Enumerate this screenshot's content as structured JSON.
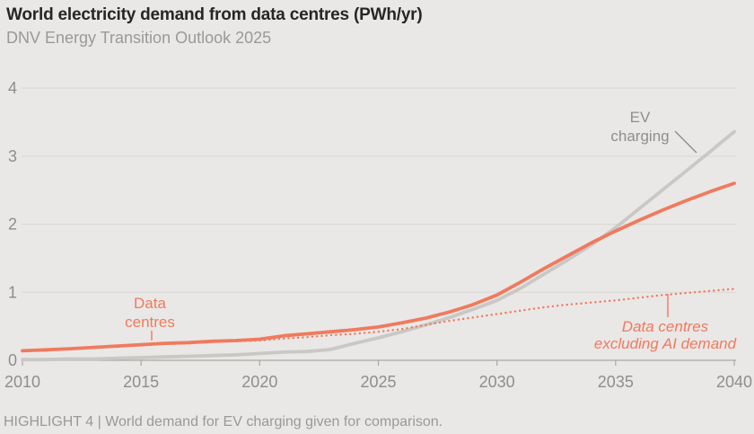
{
  "header": {
    "title": "World electricity demand from data centres (PWh/yr)",
    "subtitle": "DNV Energy Transition Outlook 2025"
  },
  "footer": {
    "caption": "HIGHLIGHT 4 | World demand for EV charging given for comparison."
  },
  "colors": {
    "background": "#e9e8e6",
    "accent_orange": "#f07a5e",
    "line_gray": "#c9c8c5",
    "gridline": "#d8d7d4",
    "axis": "#a8a7a4",
    "tick_text": "#8f8e8c",
    "title_text": "#262626",
    "muted_text": "#9a9998"
  },
  "chart_data": {
    "type": "line",
    "title": "World electricity demand from data centres (PWh/yr)",
    "subtitle": "DNV Energy Transition Outlook 2025",
    "xlabel": "",
    "ylabel": "PWh/yr",
    "xlim": [
      2010,
      2040
    ],
    "ylim": [
      0,
      4
    ],
    "x_ticks": [
      2010,
      2015,
      2020,
      2025,
      2030,
      2035,
      2040
    ],
    "y_ticks": [
      0,
      1,
      2,
      3,
      4
    ],
    "grid": "horizontal",
    "legend_position": "inline-labels",
    "series": [
      {
        "id": "ev-charging",
        "name": "EV charging",
        "style": "solid",
        "color": "#c9c8c5",
        "x": [
          2010,
          2011,
          2012,
          2013,
          2014,
          2015,
          2016,
          2017,
          2018,
          2019,
          2020,
          2021,
          2022,
          2023,
          2024,
          2025,
          2026,
          2027,
          2028,
          2029,
          2030,
          2031,
          2032,
          2033,
          2034,
          2035,
          2036,
          2037,
          2038,
          2039,
          2040
        ],
        "values": [
          0.01,
          0.01,
          0.02,
          0.02,
          0.03,
          0.04,
          0.05,
          0.06,
          0.07,
          0.08,
          0.1,
          0.12,
          0.13,
          0.16,
          0.25,
          0.33,
          0.42,
          0.52,
          0.63,
          0.75,
          0.88,
          1.06,
          1.27,
          1.48,
          1.7,
          1.95,
          2.23,
          2.51,
          2.79,
          3.07,
          3.36
        ]
      },
      {
        "id": "data-centres-excl-ai",
        "name": "Data centres excluding AI demand",
        "style": "dotted",
        "color": "#f07a5e",
        "x": [
          2010,
          2011,
          2012,
          2013,
          2014,
          2015,
          2016,
          2017,
          2018,
          2019,
          2020,
          2021,
          2022,
          2023,
          2024,
          2025,
          2026,
          2027,
          2028,
          2029,
          2030,
          2031,
          2032,
          2033,
          2034,
          2035,
          2036,
          2037,
          2038,
          2039,
          2040
        ],
        "values": [
          0.135,
          0.15,
          0.165,
          0.185,
          0.2,
          0.22,
          0.24,
          0.25,
          0.27,
          0.28,
          0.29,
          0.32,
          0.34,
          0.37,
          0.39,
          0.42,
          0.46,
          0.52,
          0.58,
          0.63,
          0.68,
          0.73,
          0.78,
          0.82,
          0.85,
          0.88,
          0.92,
          0.96,
          0.99,
          1.02,
          1.05
        ]
      },
      {
        "id": "data-centres",
        "name": "Data centres",
        "style": "solid",
        "color": "#f07a5e",
        "x": [
          2010,
          2011,
          2012,
          2013,
          2014,
          2015,
          2016,
          2017,
          2018,
          2019,
          2020,
          2021,
          2022,
          2023,
          2024,
          2025,
          2026,
          2027,
          2028,
          2029,
          2030,
          2031,
          2032,
          2033,
          2034,
          2035,
          2036,
          2037,
          2038,
          2039,
          2040
        ],
        "values": [
          0.14,
          0.155,
          0.17,
          0.19,
          0.21,
          0.23,
          0.25,
          0.26,
          0.28,
          0.29,
          0.31,
          0.36,
          0.39,
          0.42,
          0.45,
          0.49,
          0.55,
          0.62,
          0.71,
          0.82,
          0.96,
          1.15,
          1.35,
          1.54,
          1.73,
          1.9,
          2.06,
          2.21,
          2.35,
          2.48,
          2.6
        ]
      }
    ],
    "annotations": {
      "data_centres": {
        "line1": "Data",
        "line2": "centres"
      },
      "ev_charging": {
        "line1": "EV",
        "line2": "charging"
      },
      "excluding_ai": {
        "line1": "Data centres",
        "line2": "excluding AI demand"
      }
    }
  }
}
